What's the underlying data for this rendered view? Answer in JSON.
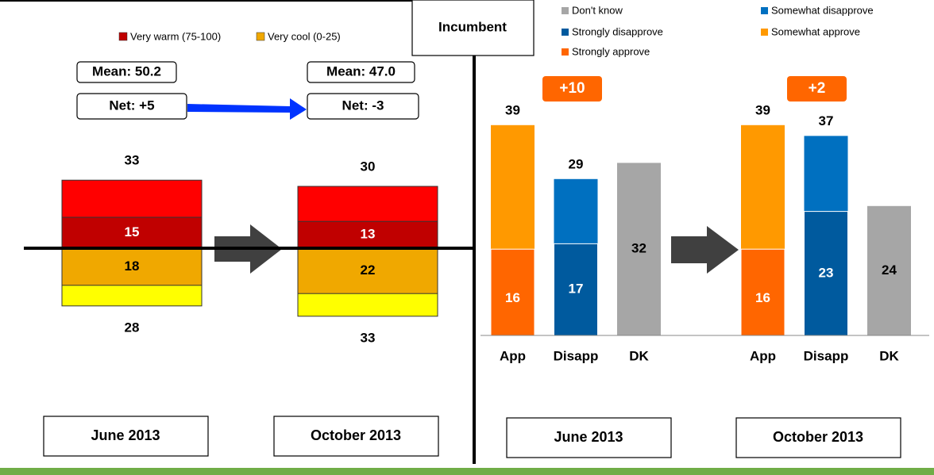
{
  "chart_data": [
    {
      "type": "thermometer",
      "categories": [
        "June 2013",
        "October 2013"
      ],
      "mean_labels": [
        "Mean: 50.2",
        "Mean: 47.0"
      ],
      "net_labels": [
        "Net: +5",
        "Net: -3"
      ],
      "series": [
        {
          "name": "Very warm (75-100)",
          "color": "#c00000",
          "values": [
            15,
            13
          ]
        },
        {
          "name": "Very cool (0-25)",
          "color": "#f0a800",
          "values": [
            18,
            22
          ]
        }
      ],
      "totals": [
        {
          "color": "#ff0000",
          "values": [
            33,
            30
          ]
        },
        {
          "color": "#ffff00",
          "values": [
            28,
            33
          ]
        }
      ]
    },
    {
      "type": "grouped-bar",
      "panel_label": "Incumbent",
      "legend": [
        {
          "name": "Don't know",
          "color": "#a6a6a6"
        },
        {
          "name": "Somewhat disapprove",
          "color": "#0070c0"
        },
        {
          "name": "Strongly disapprove",
          "color": "#005a9e"
        },
        {
          "name": "Somewhat approve",
          "color": "#ff9900"
        },
        {
          "name": "Strongly approve",
          "color": "#ff6600"
        }
      ],
      "categories": [
        "App",
        "Disapp",
        "DK"
      ],
      "groups": [
        {
          "label": "June 2013",
          "net": "+10",
          "totals": [
            39,
            29,
            32
          ],
          "strongly": [
            16,
            17
          ]
        },
        {
          "label": "October 2013",
          "net": "+2",
          "totals": [
            39,
            37,
            24
          ],
          "strongly": [
            16,
            23
          ]
        }
      ]
    }
  ]
}
